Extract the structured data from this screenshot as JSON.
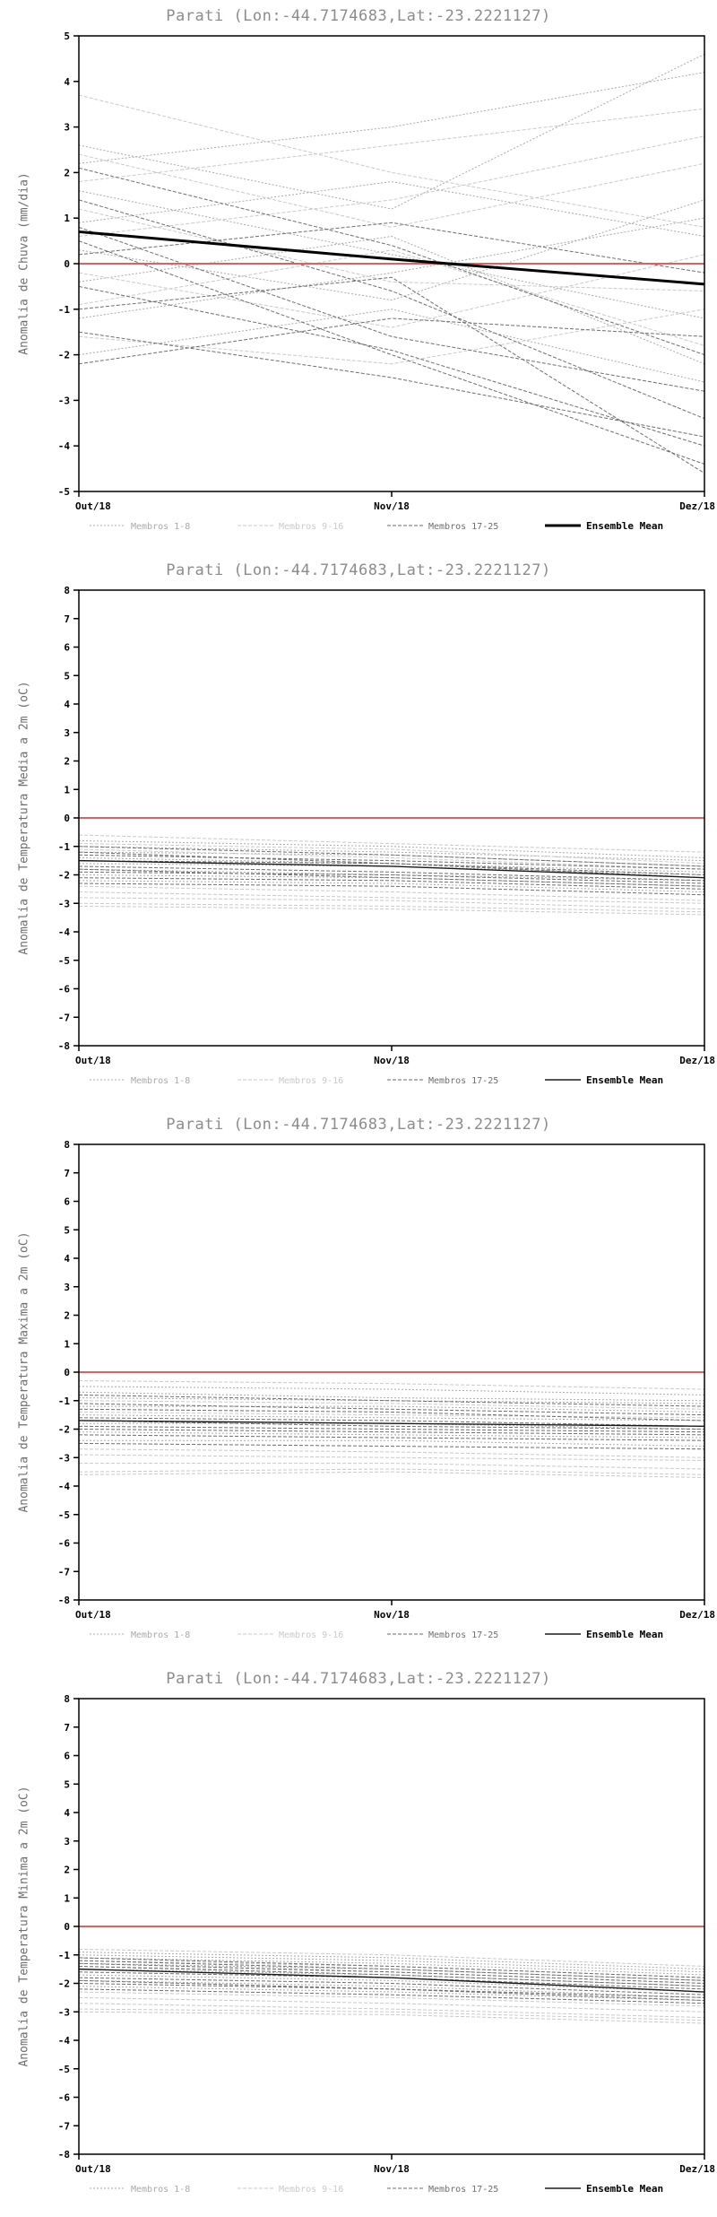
{
  "page": {
    "background": "#ffffff"
  },
  "chart_data": [
    {
      "type": "line",
      "title": "Parati (Lon:-44.7174683,Lat:-23.2221127)",
      "ylabel": "Anomalia de Chuva (mm/dia)",
      "ylim": [
        -5,
        5
      ],
      "ytick_step": 1,
      "categories": [
        "Out/18",
        "Nov/18",
        "Dez/18"
      ],
      "zero_line": {
        "y": 0,
        "color": "#e06060"
      },
      "series_groups": [
        {
          "name": "Membros 1-8",
          "color": "#a9a9a9",
          "dash": "2,2",
          "members": [
            [
              2.6,
              1.2,
              4.6
            ],
            [
              2.2,
              3.0,
              4.2
            ],
            [
              1.6,
              0.2,
              -1.2
            ],
            [
              0.9,
              1.8,
              0.6
            ],
            [
              0.3,
              -0.8,
              1.4
            ],
            [
              -0.4,
              0.6,
              -2.2
            ],
            [
              -1.2,
              -0.2,
              1.0
            ],
            [
              -2.0,
              -1.0,
              -2.6
            ]
          ]
        },
        {
          "name": "Membros 9-16",
          "color": "#c9c9c9",
          "dash": "4,2",
          "members": [
            [
              3.7,
              2.0,
              0.8
            ],
            [
              2.4,
              0.8,
              2.2
            ],
            [
              1.8,
              2.6,
              3.4
            ],
            [
              1.2,
              -0.4,
              -0.6
            ],
            [
              0.6,
              1.4,
              2.8
            ],
            [
              -0.2,
              -1.4,
              0.2
            ],
            [
              -0.9,
              0.3,
              -1.8
            ],
            [
              -1.6,
              -2.2,
              -1.0
            ]
          ]
        },
        {
          "name": "Membros 17-25",
          "color": "#6e6e6e",
          "dash": "4,2",
          "members": [
            [
              2.1,
              0.4,
              -2.0
            ],
            [
              1.4,
              -0.6,
              -3.4
            ],
            [
              0.8,
              -1.6,
              -2.8
            ],
            [
              0.2,
              0.9,
              -0.2
            ],
            [
              -0.5,
              -1.9,
              -4.0
            ],
            [
              -1.0,
              -0.3,
              -4.6
            ],
            [
              -1.5,
              -2.5,
              -3.8
            ],
            [
              -2.2,
              -1.2,
              -1.6
            ],
            [
              0.5,
              -2.0,
              -4.4
            ]
          ]
        }
      ],
      "mean": {
        "name": "Ensemble Mean",
        "color": "#000000",
        "width": 3,
        "values": [
          0.7,
          0.1,
          -0.45
        ]
      }
    },
    {
      "type": "line",
      "title": "Parati (Lon:-44.7174683,Lat:-23.2221127)",
      "ylabel": "Anomalia de Temperatura Media a 2m (oC)",
      "ylim": [
        -8,
        8
      ],
      "ytick_step": 1,
      "categories": [
        "Out/18",
        "Nov/18",
        "Dez/18"
      ],
      "zero_line": {
        "y": 0,
        "color": "#e06060"
      },
      "series_groups": [
        {
          "name": "Membros 1-8",
          "color": "#a9a9a9",
          "dash": "2,2",
          "members": [
            [
              -0.8,
              -1.0,
              -1.4
            ],
            [
              -1.0,
              -1.2,
              -1.5
            ],
            [
              -1.2,
              -1.3,
              -1.7
            ],
            [
              -1.4,
              -1.6,
              -1.9
            ],
            [
              -1.6,
              -1.7,
              -2.0
            ],
            [
              -1.8,
              -2.0,
              -2.2
            ],
            [
              -2.0,
              -2.1,
              -2.4
            ],
            [
              -2.2,
              -2.3,
              -2.6
            ]
          ]
        },
        {
          "name": "Membros 9-16",
          "color": "#c9c9c9",
          "dash": "4,2",
          "members": [
            [
              -2.6,
              -2.8,
              -3.0
            ],
            [
              -2.8,
              -2.9,
              -3.2
            ],
            [
              -3.0,
              -3.1,
              -3.3
            ],
            [
              -1.1,
              -1.4,
              -1.8
            ],
            [
              -0.6,
              -0.9,
              -1.2
            ],
            [
              -2.4,
              -2.6,
              -2.9
            ],
            [
              -3.1,
              -3.2,
              -3.4
            ],
            [
              -0.9,
              -1.1,
              -1.6
            ]
          ]
        },
        {
          "name": "Membros 17-25",
          "color": "#6e6e6e",
          "dash": "4,2",
          "members": [
            [
              -1.3,
              -1.5,
              -1.8
            ],
            [
              -1.5,
              -1.6,
              -2.0
            ],
            [
              -1.7,
              -1.9,
              -2.2
            ],
            [
              -1.9,
              -2.0,
              -2.3
            ],
            [
              -2.1,
              -2.2,
              -2.5
            ],
            [
              -1.0,
              -1.3,
              -1.7
            ],
            [
              -2.3,
              -2.4,
              -2.7
            ],
            [
              -1.2,
              -1.6,
              -2.1
            ],
            [
              -1.8,
              -2.1,
              -2.4
            ]
          ]
        }
      ],
      "mean": {
        "name": "Ensemble Mean",
        "color": "#1a1a1a",
        "width": 1.4,
        "values": [
          -1.5,
          -1.7,
          -2.1
        ]
      }
    },
    {
      "type": "line",
      "title": "Parati (Lon:-44.7174683,Lat:-23.2221127)",
      "ylabel": "Anomalia de Temperatura Maxima a 2m (oC)",
      "ylim": [
        -8,
        8
      ],
      "ytick_step": 1,
      "categories": [
        "Out/18",
        "Nov/18",
        "Dez/18"
      ],
      "zero_line": {
        "y": 0,
        "color": "#e06060"
      },
      "series_groups": [
        {
          "name": "Membros 1-8",
          "color": "#a9a9a9",
          "dash": "2,2",
          "members": [
            [
              -0.5,
              -0.6,
              -0.8
            ],
            [
              -0.9,
              -1.0,
              -1.1
            ],
            [
              -1.2,
              -1.2,
              -1.4
            ],
            [
              -1.5,
              -1.6,
              -1.7
            ],
            [
              -1.8,
              -1.8,
              -2.0
            ],
            [
              -2.1,
              -2.2,
              -2.3
            ],
            [
              -2.4,
              -2.4,
              -2.6
            ],
            [
              -0.7,
              -0.9,
              -1.0
            ]
          ]
        },
        {
          "name": "Membros 9-16",
          "color": "#c9c9c9",
          "dash": "4,2",
          "members": [
            [
              -2.9,
              -3.0,
              -3.1
            ],
            [
              -3.2,
              -3.2,
              -3.4
            ],
            [
              -3.5,
              -3.4,
              -3.6
            ],
            [
              -1.0,
              -1.1,
              -1.3
            ],
            [
              -0.3,
              -0.4,
              -0.6
            ],
            [
              -2.7,
              -2.8,
              -3.0
            ],
            [
              -3.6,
              -3.5,
              -3.7
            ],
            [
              -1.4,
              -1.5,
              -1.6
            ]
          ]
        },
        {
          "name": "Membros 17-25",
          "color": "#6e6e6e",
          "dash": "4,2",
          "members": [
            [
              -1.1,
              -1.3,
              -1.5
            ],
            [
              -1.6,
              -1.7,
              -1.9
            ],
            [
              -1.9,
              -2.0,
              -2.1
            ],
            [
              -2.2,
              -2.3,
              -2.4
            ],
            [
              -0.8,
              -1.0,
              -1.2
            ],
            [
              -2.5,
              -2.6,
              -2.7
            ],
            [
              -1.3,
              -1.4,
              -1.7
            ],
            [
              -2.0,
              -2.1,
              -2.2
            ],
            [
              -1.7,
              -1.9,
              -2.0
            ]
          ]
        }
      ],
      "mean": {
        "name": "Ensemble Mean",
        "color": "#1a1a1a",
        "width": 1.4,
        "values": [
          -1.7,
          -1.8,
          -1.9
        ]
      }
    },
    {
      "type": "line",
      "title": "Parati (Lon:-44.7174683,Lat:-23.2221127)",
      "ylabel": "Anomalia de Temperatura Minima a 2m (oC)",
      "ylim": [
        -8,
        8
      ],
      "ytick_step": 1,
      "categories": [
        "Out/18",
        "Nov/18",
        "Dez/18"
      ],
      "zero_line": {
        "y": 0,
        "color": "#e06060"
      },
      "series_groups": [
        {
          "name": "Membros 1-8",
          "color": "#a9a9a9",
          "dash": "2,2",
          "members": [
            [
              -0.9,
              -1.1,
              -1.5
            ],
            [
              -1.1,
              -1.3,
              -1.7
            ],
            [
              -1.3,
              -1.5,
              -1.9
            ],
            [
              -1.5,
              -1.7,
              -2.1
            ],
            [
              -1.7,
              -1.9,
              -2.3
            ],
            [
              -1.9,
              -2.1,
              -2.5
            ],
            [
              -2.1,
              -2.3,
              -2.6
            ],
            [
              -1.0,
              -1.2,
              -1.6
            ]
          ]
        },
        {
          "name": "Membros 9-16",
          "color": "#c9c9c9",
          "dash": "4,2",
          "members": [
            [
              -2.5,
              -2.7,
              -3.0
            ],
            [
              -2.7,
              -2.9,
              -3.2
            ],
            [
              -2.9,
              -3.0,
              -3.3
            ],
            [
              -1.2,
              -1.4,
              -1.8
            ],
            [
              -0.8,
              -1.0,
              -1.4
            ],
            [
              -2.3,
              -2.5,
              -2.8
            ],
            [
              -3.0,
              -3.1,
              -3.4
            ],
            [
              -1.4,
              -1.6,
              -2.0
            ]
          ]
        },
        {
          "name": "Membros 17-25",
          "color": "#6e6e6e",
          "dash": "4,2",
          "members": [
            [
              -1.2,
              -1.5,
              -1.9
            ],
            [
              -1.6,
              -1.8,
              -2.2
            ],
            [
              -1.8,
              -2.0,
              -2.4
            ],
            [
              -2.0,
              -2.2,
              -2.5
            ],
            [
              -1.1,
              -1.4,
              -1.8
            ],
            [
              -2.2,
              -2.4,
              -2.7
            ],
            [
              -1.4,
              -1.7,
              -2.1
            ],
            [
              -1.9,
              -2.2,
              -2.6
            ],
            [
              -1.3,
              -1.6,
              -2.0
            ]
          ]
        }
      ],
      "mean": {
        "name": "Ensemble Mean",
        "color": "#1a1a1a",
        "width": 1.4,
        "values": [
          -1.5,
          -1.8,
          -2.3
        ]
      }
    }
  ]
}
